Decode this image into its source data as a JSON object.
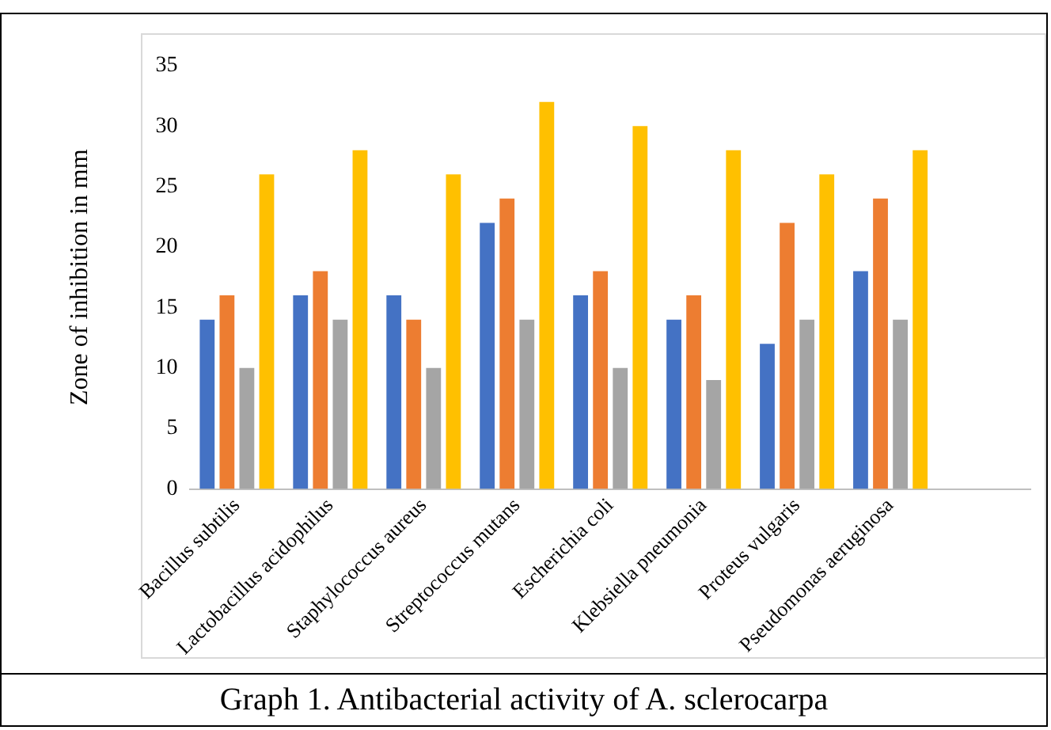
{
  "chart_data": {
    "type": "bar",
    "ylabel": "Zone of inhibition in mm",
    "categories": [
      "Bacillus subtilis",
      "Lactobacillus acidophilus",
      "Staphylococcus aureus",
      "Streptococcus mutans",
      "Escherichia coli",
      "Klebsiella pneumonia",
      "Proteus vulgaris",
      "Pseudomonas aeruginosa",
      null
    ],
    "series": [
      {
        "color": "#4472c4",
        "values": [
          14,
          16,
          16,
          22,
          16,
          14,
          12,
          18,
          null
        ]
      },
      {
        "color": "#ed7d31",
        "values": [
          16,
          18,
          14,
          24,
          18,
          16,
          22,
          24,
          null
        ]
      },
      {
        "color": "#a5a5a5",
        "values": [
          10,
          14,
          10,
          14,
          10,
          9,
          14,
          14,
          null
        ]
      },
      {
        "color": "#ffc000",
        "values": [
          26,
          28,
          26,
          32,
          30,
          28,
          26,
          28,
          null
        ]
      }
    ],
    "ylim": [
      0,
      35
    ],
    "yticks": [
      0,
      5,
      10,
      15,
      20,
      25,
      30,
      35
    ],
    "grid": false,
    "legend": false,
    "annotations": [
      "Graph 1. Antibacterial activity of A. sclerocarpa"
    ]
  }
}
